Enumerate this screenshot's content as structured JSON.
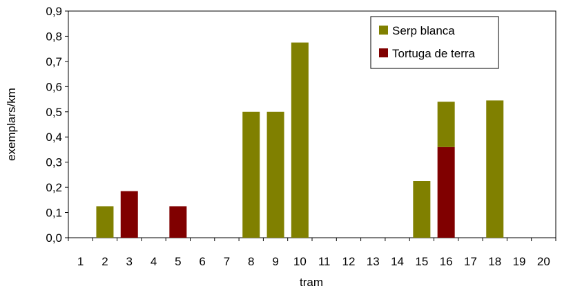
{
  "chart_data": {
    "type": "bar",
    "stacked": true,
    "title": "",
    "xlabel": "tram",
    "ylabel": "exemplars/km",
    "ylim": [
      0,
      0.9
    ],
    "ytick_step": 0.1,
    "ytick_labels": [
      "0,0",
      "0,1",
      "0,2",
      "0,3",
      "0,4",
      "0,5",
      "0,6",
      "0,7",
      "0,8",
      "0,9"
    ],
    "grid": false,
    "legend_position": "top-right",
    "categories": [
      "1",
      "2",
      "3",
      "4",
      "5",
      "6",
      "7",
      "8",
      "9",
      "10",
      "11",
      "12",
      "13",
      "14",
      "15",
      "16",
      "17",
      "18",
      "19",
      "20"
    ],
    "series": [
      {
        "name": "Tortuga de terra",
        "color": "#800000",
        "values": [
          0,
          0,
          0.185,
          0,
          0.125,
          0,
          0,
          0,
          0,
          0,
          0,
          0,
          0,
          0,
          0,
          0.36,
          0,
          0,
          0,
          0
        ]
      },
      {
        "name": "Serp blanca",
        "color": "#808000",
        "values": [
          0,
          0.125,
          0,
          0,
          0,
          0,
          0,
          0.5,
          0.5,
          0.775,
          0,
          0,
          0,
          0,
          0.225,
          0.18,
          0,
          0.545,
          0,
          0
        ]
      }
    ],
    "legend_order": [
      "Serp blanca",
      "Tortuga de terra"
    ]
  }
}
